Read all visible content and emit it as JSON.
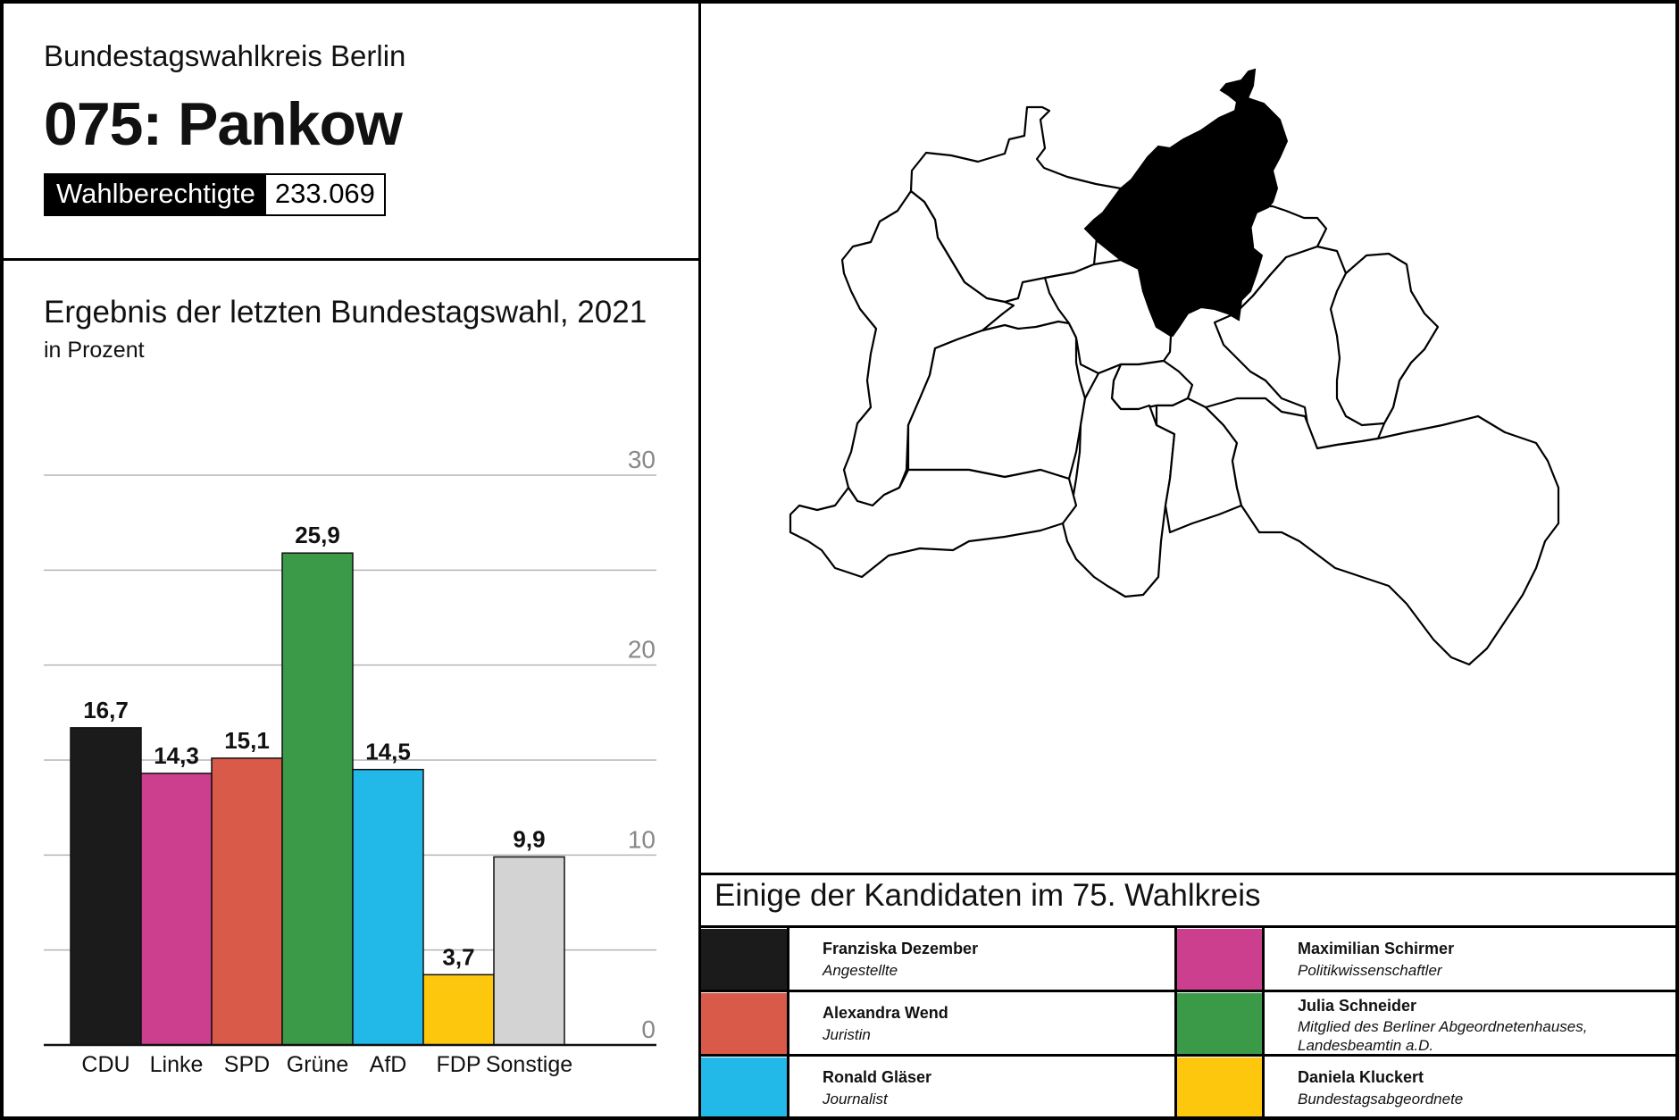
{
  "header": {
    "supertitle": "Bundestagswahlkreis Berlin",
    "title": "075: Pankow",
    "badge_label": "Wahlberechtigte",
    "badge_value": "233.069"
  },
  "chart": {
    "title": "Ergebnis der letzten Bundestagswahl, 2021",
    "subtitle": "in Prozent"
  },
  "chart_data": {
    "type": "bar",
    "title": "Ergebnis der letzten Bundestagswahl, 2021",
    "subtitle": "in Prozent",
    "categories": [
      "CDU",
      "Linke",
      "SPD",
      "Grüne",
      "AfD",
      "FDP",
      "Sonstige"
    ],
    "values": [
      16.7,
      14.3,
      15.1,
      25.9,
      14.5,
      3.7,
      9.9
    ],
    "value_labels": [
      "16,7",
      "14,3",
      "15,1",
      "25,9",
      "14,5",
      "3,7",
      "9,9"
    ],
    "colors": [
      "#1b1b1b",
      "#cc3f8e",
      "#d95a48",
      "#3a9a48",
      "#22b8e8",
      "#fdc70e",
      "#d3d3d3"
    ],
    "yticks": [
      0,
      10,
      20,
      30
    ],
    "ylim": [
      0,
      30
    ],
    "grid": true
  },
  "candidates": {
    "title": "Einige der Kandidaten im 75. Wahlkreis",
    "items": [
      {
        "name": "Franziska Dezember",
        "role": "Angestellte",
        "color": "#1b1b1b"
      },
      {
        "name": "Maximilian Schirmer",
        "role": "Politikwissenschaftler",
        "color": "#cc3f8e"
      },
      {
        "name": "Alexandra Wend",
        "role": "Juristin",
        "color": "#d95a48"
      },
      {
        "name": "Julia Schneider",
        "role": "Mitglied des Berliner Abgeordnetenhauses, Landesbeamtin a.D.",
        "color": "#3a9a48"
      },
      {
        "name": "Ronald Gläser",
        "role": "Journalist",
        "color": "#22b8e8"
      },
      {
        "name": "Daniela Kluckert",
        "role": "Bundestagsabgeordnete",
        "color": "#fdc70e"
      }
    ]
  },
  "map": {
    "highlighted_district": "Pankow",
    "highlight_color": "#000000"
  }
}
